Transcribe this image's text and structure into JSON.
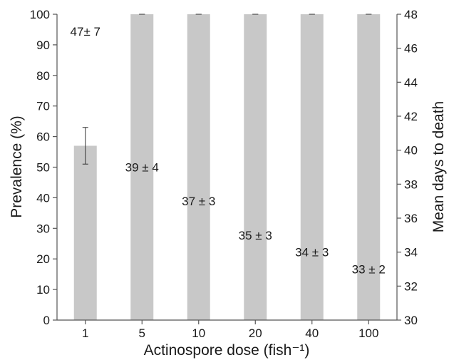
{
  "chart_data": {
    "type": "bar",
    "categories": [
      "1",
      "5",
      "10",
      "20",
      "40",
      "100"
    ],
    "values": [
      57,
      100,
      100,
      100,
      100,
      100
    ],
    "error": [
      6,
      0,
      0,
      0,
      0,
      0
    ],
    "xlabel": "Actinospore dose (fish⁻¹)",
    "ylabel": "Prevalence (%)",
    "ylabel_right": "Mean days to death",
    "ylim": [
      0,
      100
    ],
    "y_ticks": [
      0,
      10,
      20,
      30,
      40,
      50,
      60,
      70,
      80,
      90,
      100
    ],
    "ylim_right": [
      30,
      48
    ],
    "y_right_ticks": [
      30,
      32,
      34,
      36,
      38,
      40,
      42,
      44,
      46,
      48
    ],
    "annotations": [
      {
        "text": "47± 7",
        "y_right": 47
      },
      {
        "text": "39 ± 4",
        "y_right": 39
      },
      {
        "text": "37 ± 3",
        "y_right": 37
      },
      {
        "text": "35 ± 3",
        "y_right": 35
      },
      {
        "text": "34 ± 3",
        "y_right": 34
      },
      {
        "text": "33 ± 2",
        "y_right": 33
      }
    ],
    "bar_color": "#c8c8c8",
    "grid": false,
    "legend": "none"
  }
}
